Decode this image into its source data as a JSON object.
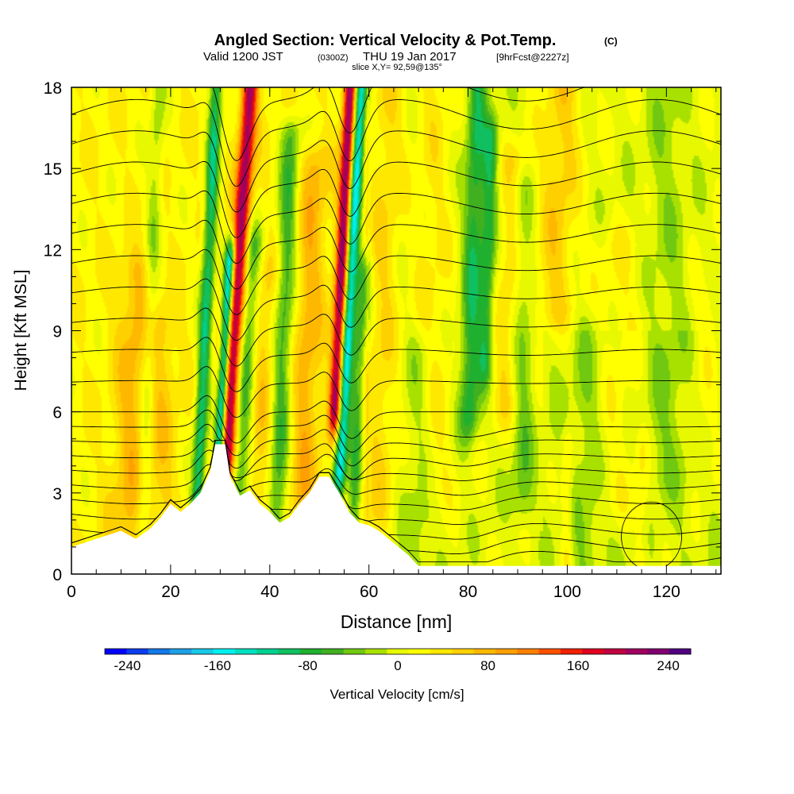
{
  "header": {
    "title": "Angled Section: Vertical Velocity & Pot.Temp.",
    "title_unit": "(C)",
    "valid_prefix": "Valid 1200 JST",
    "valid_utc": "(0300Z)",
    "valid_date": "THU 19 Jan 2017",
    "forecast": "[9hrFcst@2227z]",
    "slice": "slice X,Y= 92,59@135°"
  },
  "chart_data": {
    "type": "heatmap",
    "xlabel": "Distance [nm]",
    "ylabel": "Height [Kft MSL]",
    "xlim": [
      0,
      131
    ],
    "ylim": [
      0,
      18
    ],
    "xticks": [
      0,
      20,
      40,
      60,
      80,
      100,
      120
    ],
    "yticks": [
      0,
      3,
      6,
      9,
      12,
      15,
      18
    ],
    "colorbar": {
      "label": "Vertical Velocity [cm/s]",
      "ticks": [
        -240,
        -160,
        -80,
        0,
        80,
        160,
        240
      ],
      "min": -260,
      "max": 260,
      "colors": [
        "#0000ff",
        "#0a3cf0",
        "#1478e8",
        "#1ea0e6",
        "#18c8e8",
        "#00f0f0",
        "#00e0c0",
        "#00d090",
        "#10c060",
        "#20b030",
        "#40b020",
        "#70c810",
        "#a8e000",
        "#e8f800",
        "#ffff00",
        "#ffe800",
        "#ffd000",
        "#ffb800",
        "#ffa000",
        "#ff8000",
        "#ff5000",
        "#f02000",
        "#e00020",
        "#c00040",
        "#a00060",
        "#800070",
        "#500080"
      ]
    },
    "terrain_kft": [
      [
        0,
        1.0
      ],
      [
        5,
        1.3
      ],
      [
        10,
        1.6
      ],
      [
        13,
        1.3
      ],
      [
        16,
        1.7
      ],
      [
        18,
        2.1
      ],
      [
        20,
        2.6
      ],
      [
        22,
        2.3
      ],
      [
        24,
        2.6
      ],
      [
        26,
        3.0
      ],
      [
        28,
        3.8
      ],
      [
        29,
        4.8
      ],
      [
        31,
        4.8
      ],
      [
        32,
        3.6
      ],
      [
        34,
        2.9
      ],
      [
        36,
        3.1
      ],
      [
        38,
        2.6
      ],
      [
        40,
        2.3
      ],
      [
        42,
        1.9
      ],
      [
        44,
        2.1
      ],
      [
        46,
        2.6
      ],
      [
        48,
        3.0
      ],
      [
        50,
        3.6
      ],
      [
        52,
        3.6
      ],
      [
        54,
        3.0
      ],
      [
        56,
        2.3
      ],
      [
        58,
        1.9
      ],
      [
        60,
        1.8
      ],
      [
        62,
        1.6
      ],
      [
        64,
        1.3
      ],
      [
        66,
        1.0
      ],
      [
        68,
        0.7
      ],
      [
        70,
        0.3
      ],
      [
        131,
        0.3
      ]
    ],
    "updrafts": [
      {
        "x": 12,
        "w": 3.5,
        "top": 11,
        "bottom": 0.6,
        "peak_cm_s": 50,
        "tilt": 0.2
      },
      {
        "x": 18,
        "w": 3,
        "top": 9,
        "bottom": 0.8,
        "peak_cm_s": 35,
        "tilt": 0.1
      },
      {
        "x": 31.5,
        "w": 1.6,
        "top": 18,
        "bottom": 4.4,
        "peak_cm_s": 190,
        "tilt": 0.35
      },
      {
        "x": 38,
        "w": 2.5,
        "top": 11,
        "bottom": 3.0,
        "peak_cm_s": 35,
        "tilt": 0.3
      },
      {
        "x": 47,
        "w": 2.8,
        "top": 15,
        "bottom": 3.0,
        "peak_cm_s": 55,
        "tilt": 0.2
      },
      {
        "x": 53,
        "w": 1.3,
        "top": 18,
        "bottom": 6.2,
        "peak_cm_s": 210,
        "tilt": 0.25
      },
      {
        "x": 62,
        "w": 3.5,
        "top": 18,
        "bottom": 2.5,
        "peak_cm_s": 45,
        "tilt": 0.15
      },
      {
        "x": 73,
        "w": 4,
        "top": 18,
        "bottom": 3.5,
        "peak_cm_s": 30,
        "tilt": 0.0
      },
      {
        "x": 87,
        "w": 3,
        "top": 15,
        "bottom": 6.5,
        "peak_cm_s": 45,
        "tilt": 0.25
      },
      {
        "x": 96,
        "w": 4,
        "top": 18,
        "bottom": 10,
        "peak_cm_s": 55,
        "tilt": 0.25
      },
      {
        "x": 110,
        "w": 5,
        "top": 12,
        "bottom": 3.0,
        "peak_cm_s": 25,
        "tilt": 0.1
      },
      {
        "x": 128,
        "w": 3,
        "top": 10,
        "bottom": 4.0,
        "peak_cm_s": 20,
        "tilt": 0.0
      },
      {
        "x": 100,
        "w": 1.2,
        "top": 4.5,
        "bottom": 0.5,
        "peak_cm_s": 35,
        "tilt": 0.0
      },
      {
        "x": 115,
        "w": 1.5,
        "top": 4.5,
        "bottom": 0.5,
        "peak_cm_s": 30,
        "tilt": 0.0
      }
    ],
    "downdrafts": [
      {
        "x": 26,
        "w": 1.3,
        "top": 18,
        "bottom": 1.5,
        "peak_cm_s": -125,
        "tilt": 0.25
      },
      {
        "x": 30,
        "w": 1.0,
        "top": 11.5,
        "bottom": 4.5,
        "peak_cm_s": -200,
        "tilt": 0.3
      },
      {
        "x": 34.5,
        "w": 1.8,
        "top": 12,
        "bottom": 2.6,
        "peak_cm_s": -80,
        "tilt": 0.3
      },
      {
        "x": 42,
        "w": 2.0,
        "top": 16,
        "bottom": 2.0,
        "peak_cm_s": -85,
        "tilt": 0.2
      },
      {
        "x": 54.5,
        "w": 1.3,
        "top": 18,
        "bottom": 4.0,
        "peak_cm_s": -190,
        "tilt": 0.3
      },
      {
        "x": 57.5,
        "w": 1.4,
        "top": 11,
        "bottom": 1.5,
        "peak_cm_s": -90,
        "tilt": 0.2
      },
      {
        "x": 15,
        "w": 1.5,
        "top": 18,
        "bottom": 2,
        "peak_cm_s": -45,
        "tilt": 0.2
      },
      {
        "x": 80,
        "w": 2.0,
        "top": 18,
        "bottom": 6,
        "peak_cm_s": -85,
        "tilt": 0.15
      },
      {
        "x": 83,
        "w": 1.5,
        "top": 16,
        "bottom": 8,
        "peak_cm_s": -80,
        "tilt": 0.15
      },
      {
        "x": 91,
        "w": 2.2,
        "top": 14,
        "bottom": 3,
        "peak_cm_s": -45,
        "tilt": 0.0
      },
      {
        "x": 70,
        "w": 3.0,
        "top": 8,
        "bottom": 0.3,
        "peak_cm_s": -30,
        "tilt": 0.0
      },
      {
        "x": 104,
        "w": 3.0,
        "top": 9,
        "bottom": 0.3,
        "peak_cm_s": -25,
        "tilt": 0.0
      },
      {
        "x": 120,
        "w": 4.0,
        "top": 18,
        "bottom": 4,
        "peak_cm_s": -25,
        "tilt": 0.0
      }
    ],
    "theta_contours_C": [
      -6,
      -4,
      -2,
      0,
      2,
      4,
      6,
      8,
      10,
      12,
      14,
      16,
      18,
      20,
      22,
      24,
      26,
      28,
      30,
      32,
      34,
      36,
      38,
      40,
      42,
      44,
      46,
      48,
      50
    ]
  }
}
